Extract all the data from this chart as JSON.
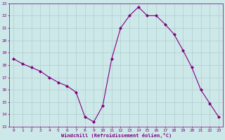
{
  "x": [
    0,
    1,
    2,
    3,
    4,
    5,
    6,
    7,
    8,
    9,
    10,
    11,
    12,
    13,
    14,
    15,
    16,
    17,
    18,
    19,
    20,
    21,
    22,
    23
  ],
  "y": [
    18.5,
    18.1,
    17.8,
    17.5,
    17.0,
    16.6,
    16.3,
    15.8,
    13.8,
    13.4,
    14.7,
    18.5,
    21.0,
    22.0,
    22.7,
    22.0,
    22.0,
    21.3,
    20.5,
    19.2,
    17.8,
    16.0,
    14.9,
    13.8
  ],
  "line_color": "#800080",
  "marker": "D",
  "marker_size": 2.0,
  "bg_color": "#cde8e8",
  "grid_color": "#b0cccc",
  "ylim": [
    13,
    23
  ],
  "xlim": [
    -0.5,
    23.5
  ],
  "yticks": [
    13,
    14,
    15,
    16,
    17,
    18,
    19,
    20,
    21,
    22,
    23
  ],
  "xticks": [
    0,
    1,
    2,
    3,
    4,
    5,
    6,
    7,
    8,
    9,
    10,
    11,
    12,
    13,
    14,
    15,
    16,
    17,
    18,
    19,
    20,
    21,
    22,
    23
  ],
  "xlabel": "Windchill (Refroidissement éolien,°C)",
  "tick_label_color": "#800080",
  "spine_color": "#800080"
}
